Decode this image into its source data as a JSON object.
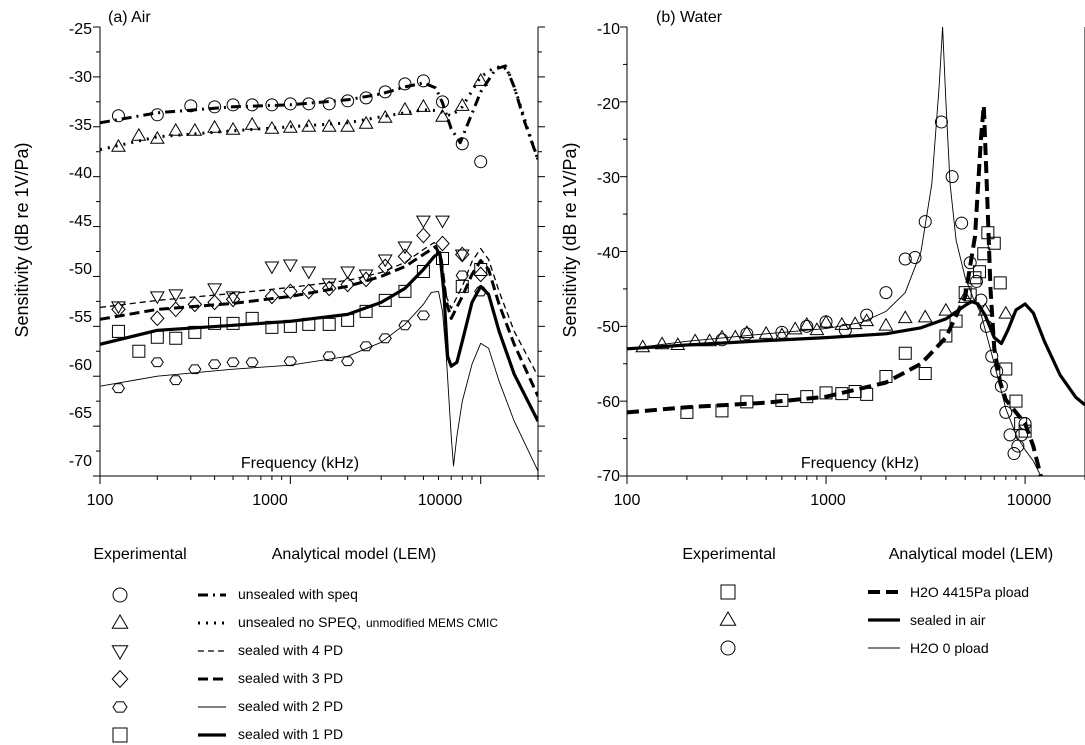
{
  "chart_data": [
    {
      "type": "line",
      "panel_label": "(a) Air",
      "xlabel": "Frequency (kHz)",
      "ylabel": "Sensitivity (dB re 1V/Pa)",
      "xscale": "log",
      "xlim": [
        100,
        20000
      ],
      "ylim": [
        -70,
        -25
      ],
      "xticks": [
        "100",
        "1000",
        "10000"
      ],
      "yticks": [
        "-25",
        "-30",
        "-35",
        "-40",
        "-45",
        "-50",
        "-55",
        "-60",
        "-65",
        "-70"
      ],
      "grid": false,
      "model_series": [
        {
          "style": "dash-dot-thick",
          "x": [
            100,
            200,
            500,
            1000,
            2000,
            3000,
            4000,
            5000,
            5800,
            6300,
            7000,
            7800,
            8600,
            10000,
            12000,
            13500,
            15000,
            17000,
            20000
          ],
          "y": [
            -34.6,
            -33.6,
            -33.0,
            -32.8,
            -32.3,
            -31.7,
            -31.0,
            -30.6,
            -31.1,
            -32.6,
            -35.2,
            -36.6,
            -34.6,
            -31.5,
            -29.2,
            -28.9,
            -31.0,
            -34.5,
            -38.3
          ]
        },
        {
          "style": "dotted-thick",
          "x": [
            100,
            200,
            500,
            1000,
            2000,
            3000,
            4000,
            5000,
            6000,
            7000,
            8000,
            9000,
            10000,
            11500,
            13000,
            14000,
            15500,
            17500,
            20000
          ],
          "y": [
            -37.3,
            -36.0,
            -35.4,
            -35.0,
            -34.6,
            -34.0,
            -33.6,
            -33.3,
            -33.4,
            -33.9,
            -33.0,
            -31.4,
            -30.0,
            -29.2,
            -28.9,
            -29.5,
            -31.8,
            -35.0,
            -38.3
          ]
        },
        {
          "style": "dashed-thin",
          "x": [
            100,
            200,
            500,
            1000,
            2000,
            3000,
            4000,
            5000,
            5700,
            6200,
            6600,
            7000,
            8000,
            9000,
            10000,
            11000,
            12500,
            15000,
            20000
          ],
          "y": [
            -53.1,
            -52.4,
            -51.7,
            -51.1,
            -50.4,
            -49.6,
            -48.6,
            -47.3,
            -46.6,
            -48.0,
            -52.0,
            -53.2,
            -51.0,
            -48.5,
            -47.2,
            -48.3,
            -51.5,
            -55.5,
            -60.0
          ]
        },
        {
          "style": "dashed-thick",
          "x": [
            100,
            200,
            500,
            1000,
            2000,
            3000,
            4000,
            5000,
            5800,
            6200,
            6600,
            7000,
            8000,
            9000,
            10000,
            11000,
            12500,
            15000,
            20000
          ],
          "y": [
            -54.3,
            -53.3,
            -52.7,
            -52.0,
            -51.0,
            -50.0,
            -49.0,
            -47.8,
            -47.0,
            -48.3,
            -52.5,
            -54.2,
            -52.0,
            -49.8,
            -48.4,
            -49.3,
            -52.8,
            -56.8,
            -62.0
          ]
        },
        {
          "style": "solid-thin",
          "x": [
            100,
            200,
            500,
            1000,
            2000,
            3000,
            4000,
            5000,
            5500,
            6000,
            6300,
            6600,
            7000,
            7200,
            7500,
            8000,
            9000,
            10000,
            11000,
            12500,
            15000,
            20000
          ],
          "y": [
            -61.0,
            -60.0,
            -59.3,
            -58.9,
            -58.0,
            -56.6,
            -54.8,
            -52.8,
            -51.6,
            -51.5,
            -53.5,
            -58.0,
            -66.0,
            -69.0,
            -66.0,
            -62.5,
            -58.8,
            -56.7,
            -57.2,
            -60.5,
            -64.5,
            -69.5
          ]
        },
        {
          "style": "solid-thick",
          "x": [
            100,
            200,
            500,
            1000,
            2000,
            3000,
            4000,
            5000,
            5700,
            6100,
            6400,
            6700,
            7000,
            7500,
            8000,
            9000,
            10000,
            11000,
            12500,
            15000,
            20000
          ],
          "y": [
            -56.8,
            -55.4,
            -54.9,
            -54.5,
            -53.8,
            -52.6,
            -51.2,
            -49.3,
            -48.0,
            -47.6,
            -51.5,
            -58.0,
            -59.0,
            -58.6,
            -56.5,
            -52.6,
            -51.0,
            -51.8,
            -55.5,
            -59.8,
            -64.5
          ]
        }
      ],
      "experimental_series": [
        {
          "marker": "circle",
          "x": [
            125,
            200,
            300,
            400,
            500,
            630,
            800,
            1000,
            1250,
            1600,
            2000,
            2500,
            3150,
            4000,
            5000,
            6300,
            8000,
            10000
          ],
          "y": [
            -33.9,
            -33.8,
            -32.9,
            -33.0,
            -32.8,
            -32.8,
            -32.8,
            -32.7,
            -32.7,
            -32.7,
            -32.4,
            -32.1,
            -31.5,
            -30.7,
            -30.4,
            -32.5,
            -36.7,
            -38.5
          ]
        },
        {
          "marker": "triangle-up",
          "x": [
            125,
            160,
            200,
            250,
            315,
            400,
            500,
            630,
            800,
            1000,
            1250,
            1600,
            2000,
            2500,
            3150,
            4000,
            5000,
            6300,
            8000,
            10000
          ],
          "y": [
            -37.0,
            -35.9,
            -36.2,
            -35.4,
            -35.4,
            -35.1,
            -35.3,
            -34.8,
            -35.2,
            -35.1,
            -35.0,
            -35.0,
            -35.0,
            -34.7,
            -34.1,
            -33.3,
            -33.0,
            -34.0,
            -32.9,
            -30.4
          ]
        },
        {
          "marker": "triangle-down",
          "x": [
            125,
            200,
            250,
            400,
            500,
            800,
            1000,
            1250,
            1600,
            2000,
            2500,
            3150,
            4000,
            5000,
            6300,
            8000
          ],
          "y": [
            -53.0,
            -52.0,
            -51.8,
            -51.2,
            -52.0,
            -49.0,
            -48.8,
            -49.5,
            -50.7,
            -49.5,
            -49.8,
            -48.3,
            -47.0,
            -44.4,
            -44.4,
            -47.8
          ]
        },
        {
          "marker": "diamond",
          "x": [
            125,
            200,
            250,
            315,
            400,
            500,
            800,
            1000,
            1250,
            1600,
            2000,
            2500,
            3150,
            4000,
            5000,
            6300,
            8000,
            10000
          ],
          "y": [
            -53.3,
            -54.2,
            -53.3,
            -52.8,
            -52.6,
            -52.3,
            -52.0,
            -51.5,
            -51.5,
            -51.2,
            -50.8,
            -50.3,
            -49.0,
            -48.0,
            -45.9,
            -46.7,
            -47.8,
            -49.8
          ]
        },
        {
          "marker": "hexagon",
          "x": [
            125,
            200,
            250,
            315,
            400,
            500,
            630,
            1000,
            1600,
            2000,
            2500,
            3150,
            4000,
            5000,
            8000,
            10000
          ],
          "y": [
            -61.2,
            -58.6,
            -60.4,
            -59.3,
            -58.8,
            -58.6,
            -58.6,
            -58.5,
            -58.0,
            -58.5,
            -57.0,
            -56.2,
            -54.9,
            -53.9,
            -49.9,
            -51.5
          ]
        },
        {
          "marker": "square",
          "x": [
            125,
            160,
            200,
            250,
            315,
            400,
            500,
            630,
            800,
            1000,
            1250,
            1600,
            2000,
            2500,
            3150,
            4000,
            5000,
            6300,
            8000,
            10000
          ],
          "y": [
            -55.5,
            -57.5,
            -56.1,
            -56.2,
            -55.6,
            -54.7,
            -54.7,
            -54.2,
            -55.1,
            -55.0,
            -54.8,
            -54.8,
            -54.4,
            -53.5,
            -52.4,
            -51.5,
            -49.5,
            -48.2,
            -51.0,
            -49.3
          ]
        }
      ],
      "legend": {
        "header_experimental": "Experimental",
        "header_model": "Analytical model (LEM)",
        "entries": [
          {
            "marker": "circle",
            "line": "dash-dot-thick",
            "label": "unsealed with speq",
            "note": ""
          },
          {
            "marker": "triangle-up",
            "line": "dotted-thick",
            "label": "unsealed no SPEQ,",
            "note": "unmodified MEMS CMIC"
          },
          {
            "marker": "triangle-down",
            "line": "dashed-thin",
            "label": "sealed with 4 PD",
            "note": ""
          },
          {
            "marker": "diamond",
            "line": "dashed-thick",
            "label": "sealed with 3 PD",
            "note": ""
          },
          {
            "marker": "hexagon",
            "line": "solid-thin",
            "label": "sealed with 2 PD",
            "note": ""
          },
          {
            "marker": "square",
            "line": "solid-thick",
            "label": "sealed with 1 PD",
            "note": ""
          }
        ]
      }
    },
    {
      "type": "line",
      "panel_label": "(b) Water",
      "xlabel": "Frequency (kHz)",
      "ylabel": "Sensitivity (dB re 1V/Pa)",
      "xscale": "log",
      "xlim": [
        100,
        20000
      ],
      "ylim": [
        -70,
        -10
      ],
      "xticks": [
        "100",
        "1000",
        "10000"
      ],
      "yticks": [
        "-10",
        "-20",
        "-30",
        "-40",
        "-50",
        "-60",
        "-70"
      ],
      "grid": false,
      "model_series": [
        {
          "style": "dashed-xthick",
          "x": [
            100,
            200,
            500,
            1000,
            2000,
            3000,
            4000,
            5000,
            5600,
            6000,
            6200,
            6400,
            6700,
            7000,
            7500,
            8000,
            9000,
            10000,
            11000,
            12000
          ],
          "y": [
            -61.5,
            -60.8,
            -60.2,
            -59.4,
            -57.5,
            -55.0,
            -51.5,
            -46.0,
            -38.0,
            -25.0,
            -20.5,
            -30.0,
            -45.0,
            -53.0,
            -57.5,
            -59.8,
            -61.5,
            -63.0,
            -66.0,
            -70.0
          ]
        },
        {
          "style": "solid-thick",
          "x": [
            100,
            200,
            500,
            1000,
            2000,
            3000,
            4000,
            5000,
            5400,
            5800,
            6300,
            7000,
            7600,
            8200,
            9000,
            10000,
            11000,
            12500,
            15000,
            18000,
            20000
          ],
          "y": [
            -53.0,
            -52.5,
            -51.9,
            -51.5,
            -51.0,
            -50.2,
            -49.0,
            -47.2,
            -46.7,
            -47.0,
            -48.5,
            -51.5,
            -52.3,
            -50.5,
            -47.8,
            -47.0,
            -48.2,
            -52.0,
            -56.5,
            -59.5,
            -60.5
          ]
        },
        {
          "style": "solid-thin",
          "x": [
            100,
            200,
            500,
            1000,
            1500,
            2000,
            2500,
            3000,
            3400,
            3700,
            3850,
            4000,
            4200,
            4500,
            5000,
            5500,
            6000,
            7000,
            8000,
            9000,
            10000,
            11000,
            12000
          ],
          "y": [
            -53.0,
            -52.0,
            -51.0,
            -50.3,
            -49.5,
            -48.0,
            -45.5,
            -40.0,
            -31.0,
            -18.0,
            -10.0,
            -20.0,
            -31.0,
            -38.5,
            -43.5,
            -46.3,
            -48.3,
            -55.0,
            -61.0,
            -64.5,
            -66.5,
            -68.0,
            -70.0
          ]
        }
      ],
      "experimental_series": [
        {
          "marker": "square",
          "x": [
            200,
            300,
            400,
            600,
            800,
            1000,
            1200,
            1400,
            1600,
            2000,
            2500,
            3150,
            4000,
            4500,
            5000,
            5300,
            5600,
            5900,
            6200,
            6500,
            7000,
            7500,
            8000,
            9000,
            9500,
            10000
          ],
          "y": [
            -61.5,
            -61.3,
            -60.1,
            -59.9,
            -59.4,
            -58.9,
            -59.0,
            -58.7,
            -59.1,
            -56.7,
            -53.6,
            -56.3,
            -51.3,
            -49.3,
            -45.5,
            -45.8,
            -43.5,
            -42.7,
            -40.3,
            -37.5,
            -38.9,
            -44.2,
            -55.7,
            -60.0,
            -63.0,
            -64.0
          ]
        },
        {
          "marker": "triangle-up",
          "x": [
            120,
            150,
            180,
            220,
            260,
            300,
            350,
            400,
            500,
            600,
            700,
            800,
            900,
            1000,
            1200,
            1400,
            1600,
            2000,
            2500,
            3150,
            4000,
            5000,
            6300,
            8000
          ],
          "y": [
            -52.8,
            -52.4,
            -52.5,
            -52.0,
            -52.0,
            -51.5,
            -51.5,
            -50.9,
            -51.0,
            -51.2,
            -50.4,
            -49.8,
            -50.5,
            -49.5,
            -49.8,
            -49.7,
            -49.3,
            -49.9,
            -48.9,
            -48.8,
            -47.9,
            -46.2,
            -47.9,
            -48.3
          ]
        },
        {
          "marker": "circle",
          "x": [
            300,
            400,
            600,
            800,
            1000,
            1250,
            1600,
            2000,
            2500,
            2800,
            3150,
            3800,
            4300,
            4800,
            5300,
            5700,
            6000,
            6400,
            6800,
            7200,
            7600,
            8000,
            8400,
            8800,
            9200,
            9600,
            10000
          ],
          "y": [
            -51.8,
            -51.0,
            -50.8,
            -50.0,
            -49.4,
            -50.5,
            -48.5,
            -45.5,
            -41.0,
            -40.8,
            -36.0,
            -22.7,
            -30.0,
            -36.2,
            -41.5,
            -44.0,
            -46.5,
            -50.0,
            -54.0,
            -56.0,
            -58.0,
            -61.5,
            -64.5,
            -67.0,
            -66.0,
            -64.5,
            -63.0
          ]
        }
      ],
      "legend": {
        "header_experimental": "Experimental",
        "header_model": "Analytical model (LEM)",
        "entries": [
          {
            "marker": "square",
            "line": "dashed-xthick",
            "label": "H2O 4415Pa pload"
          },
          {
            "marker": "triangle-up",
            "line": "solid-thick",
            "label": "sealed in air"
          },
          {
            "marker": "circle",
            "line": "solid-thin",
            "label": "H2O 0 pload"
          }
        ]
      }
    }
  ]
}
